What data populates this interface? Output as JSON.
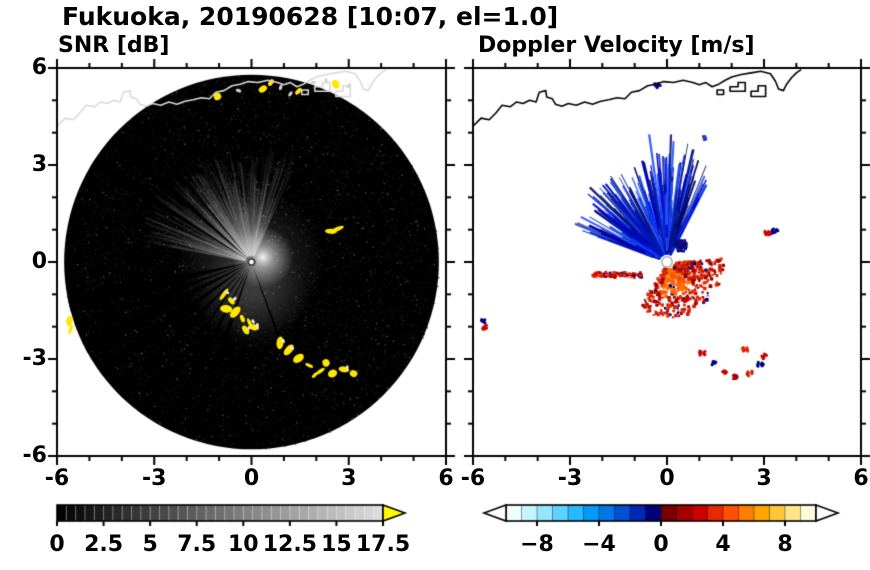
{
  "title": "Fukuoka, 20190628 [10:07, el=1.0]",
  "chart_data": [
    {
      "type": "heatmap",
      "id": "snr",
      "title": "SNR [dB]",
      "xlim": [
        -6,
        6
      ],
      "ylim": [
        -6,
        6
      ],
      "xticks": [
        -6,
        -3,
        0,
        3,
        6
      ],
      "xtick_labels": [
        "-6",
        "-3",
        "0",
        "3",
        "6"
      ],
      "yticks": [
        6,
        3,
        0,
        -3,
        -6
      ],
      "ytick_labels": [
        "6",
        "3",
        "0",
        "-3",
        "-6"
      ],
      "minor_step": 1,
      "grid": false,
      "coastline_color": "#d9d9d9",
      "colorbar": {
        "palette": "grayscale",
        "vmin": 0,
        "vmax": 17.5,
        "segments": 35,
        "tick_values": [
          0,
          2.5,
          5,
          7.5,
          10,
          12.5,
          15,
          17.5
        ],
        "tick_labels": [
          "0",
          "2.5",
          "5",
          "7.5",
          "10",
          "12.5",
          "15",
          "17.5"
        ],
        "over_arrow_color": "#ffff00"
      },
      "scan": {
        "radius": 5.78,
        "background_color": "#000000",
        "noise_points": 5200,
        "haze_fan": {
          "az_min": -80,
          "az_max": 25,
          "r_max": 3.6,
          "count": 430
        },
        "bright_blob": {
          "x": 0.35,
          "y": 0.15,
          "r": 0.95
        },
        "south_haze": {
          "x": 0.05,
          "y": -1.0,
          "r": 1.7
        },
        "dark_spokes": [
          199,
          207,
          216,
          225,
          234,
          243,
          250,
          257,
          302,
          312,
          321,
          160
        ],
        "yellow_color": "#ffe800",
        "clutter_color": "#d0d0d0",
        "yellow_chains": [
          [
            [
              -0.85,
              -1.0
            ],
            [
              -0.62,
              -1.2
            ],
            [
              -0.78,
              -1.45
            ],
            [
              -0.5,
              -1.55
            ],
            [
              -0.28,
              -1.75
            ],
            [
              -0.05,
              -1.9
            ],
            [
              -0.18,
              -2.1
            ],
            [
              0.08,
              -2.02
            ]
          ],
          [
            [
              0.88,
              -2.5
            ],
            [
              1.15,
              -2.72
            ],
            [
              1.45,
              -2.98
            ],
            [
              1.78,
              -3.2
            ],
            [
              2.12,
              -3.38
            ],
            [
              2.5,
              -3.45
            ],
            [
              2.85,
              -3.32
            ],
            [
              3.15,
              -3.45
            ],
            [
              2.3,
              -3.12
            ],
            [
              1.95,
              -3.5
            ]
          ],
          [
            [
              2.45,
              0.95
            ],
            [
              2.65,
              1.02
            ]
          ],
          [
            [
              -5.62,
              -1.82
            ],
            [
              -5.58,
              -2.08
            ]
          ],
          [
            [
              0.35,
              5.35
            ],
            [
              1.45,
              5.28
            ],
            [
              -1.05,
              5.12
            ],
            [
              2.6,
              5.5
            ],
            [
              0.6,
              5.55
            ]
          ]
        ],
        "top_clutter": [
          [
            0.9,
            5.4
          ],
          [
            1.9,
            5.55
          ],
          [
            2.3,
            5.6
          ],
          [
            -0.4,
            5.3
          ],
          [
            3.0,
            5.45
          ],
          [
            1.2,
            5.2
          ]
        ],
        "center_dot": {
          "r": 0.1
        }
      }
    },
    {
      "type": "heatmap",
      "id": "velocity",
      "title": "Doppler Velocity [m/s]",
      "xlim": [
        -6,
        6
      ],
      "ylim": [
        -6,
        6
      ],
      "xticks": [
        -6,
        -3,
        0,
        3,
        6
      ],
      "xtick_labels": [
        "-6",
        "-3",
        "0",
        "3",
        "6"
      ],
      "yticks": [
        6,
        3,
        0,
        -3,
        -6
      ],
      "ytick_labels": [],
      "minor_step": 1,
      "grid": false,
      "coastline_color": "#000000",
      "colorbar": {
        "palette": "diverging",
        "vmin": -10,
        "vmax": 10,
        "colors": [
          "#f0ffff",
          "#c8f4ff",
          "#96e6ff",
          "#5fd3ff",
          "#28b8ff",
          "#009cf5",
          "#0078e8",
          "#0050d8",
          "#0028b4",
          "#000078",
          "#780000",
          "#a40000",
          "#cc0000",
          "#e82800",
          "#ff5000",
          "#ff7d00",
          "#ffa500",
          "#ffc83c",
          "#ffe68c",
          "#fffadc"
        ],
        "tick_values": [
          -8,
          -4,
          0,
          4,
          8
        ],
        "tick_labels": [
          "−8",
          "−4",
          "0",
          "4",
          "8"
        ],
        "under_arrow_color": "#ffffff",
        "over_arrow_color": "#ffffff"
      },
      "features": {
        "blue_fan": {
          "az": [
            -70,
            28
          ],
          "count": 430,
          "r0": [
            0.22,
            0.5
          ],
          "len_pow": 2.0,
          "len_max": 2.6,
          "long_az": [
            -12,
            18
          ],
          "colors": [
            "#0000cd",
            "#0020b0",
            "#0038e8",
            "#001078",
            "#2a50ff",
            "#000860"
          ]
        },
        "ne_blob": {
          "x": 0.4,
          "y": 0.55,
          "spread": 0.22,
          "count": 80,
          "colors": [
            "#000080",
            "#0000b4",
            "#141464"
          ]
        },
        "red_fan": {
          "az": [
            85,
            215
          ],
          "count": 560,
          "r_max": 1.5,
          "orange": [
            "#ff6400",
            "#ff7d00",
            "#ff5000"
          ],
          "red": [
            "#e03000",
            "#c81400",
            "#a00000"
          ],
          "navy_frac": 0.06
        },
        "west_streak": {
          "x": [
            -2.35,
            -0.8
          ],
          "y_c": -0.36,
          "y_sd": 0.1,
          "count": 120,
          "colors": [
            "#d81800",
            "#b40000",
            "#ff3c00"
          ],
          "navy_frac": 0.18
        },
        "patches": [
          [
            3.08,
            0.92,
            "#cc0000"
          ],
          [
            3.2,
            0.9,
            "#cc0000"
          ],
          [
            3.33,
            0.95,
            "#000080"
          ],
          [
            -5.66,
            -1.85,
            "#000080"
          ],
          [
            -5.64,
            -2.03,
            "#cc0000"
          ],
          [
            1.1,
            -2.82,
            "#cc0000"
          ],
          [
            1.42,
            -3.15,
            "#000080"
          ],
          [
            1.75,
            -3.42,
            "#cc0000"
          ],
          [
            2.15,
            -3.55,
            "#a00000"
          ],
          [
            2.55,
            -3.45,
            "#cc2000"
          ],
          [
            2.88,
            -3.18,
            "#000080"
          ],
          [
            3.02,
            -2.92,
            "#cc0000"
          ],
          [
            2.42,
            -2.68,
            "#dd2200"
          ],
          [
            -0.3,
            5.45,
            "#000080"
          ],
          [
            1.15,
            3.85,
            "#2040c0"
          ]
        ],
        "center_hole": {
          "r": 0.16
        }
      }
    }
  ],
  "coastline": {
    "line": [
      [
        -6.0,
        4.2
      ],
      [
        -5.75,
        4.45
      ],
      [
        -5.5,
        4.4
      ],
      [
        -5.3,
        4.6
      ],
      [
        -5.1,
        4.85
      ],
      [
        -4.85,
        4.8
      ],
      [
        -4.65,
        4.95
      ],
      [
        -4.45,
        4.9
      ],
      [
        -4.25,
        5.0
      ],
      [
        -4.05,
        4.95
      ],
      [
        -3.95,
        5.25
      ],
      [
        -3.75,
        5.3
      ],
      [
        -3.72,
        5.1
      ],
      [
        -3.55,
        5.05
      ],
      [
        -3.45,
        4.88
      ],
      [
        -3.25,
        4.82
      ],
      [
        -3.05,
        4.9
      ],
      [
        -2.8,
        4.85
      ],
      [
        -2.55,
        4.95
      ],
      [
        -2.3,
        4.88
      ],
      [
        -2.05,
        4.97
      ],
      [
        -1.8,
        5.02
      ],
      [
        -1.55,
        5.08
      ],
      [
        -1.3,
        5.05
      ],
      [
        -1.1,
        5.25
      ],
      [
        -0.85,
        5.3
      ],
      [
        -0.6,
        5.45
      ],
      [
        -0.35,
        5.5
      ],
      [
        -0.1,
        5.58
      ],
      [
        0.2,
        5.55
      ],
      [
        0.5,
        5.62
      ],
      [
        0.8,
        5.55
      ],
      [
        1.0,
        5.48
      ],
      [
        1.2,
        5.55
      ],
      [
        1.4,
        5.42
      ],
      [
        1.6,
        5.5
      ],
      [
        1.8,
        5.62
      ],
      [
        2.0,
        5.72
      ],
      [
        2.3,
        5.8
      ],
      [
        2.6,
        5.85
      ],
      [
        2.9,
        5.9
      ],
      [
        3.2,
        5.82
      ],
      [
        3.35,
        5.6
      ],
      [
        3.45,
        5.35
      ],
      [
        3.6,
        5.3
      ],
      [
        3.7,
        5.5
      ],
      [
        3.85,
        5.7
      ],
      [
        4.0,
        5.85
      ],
      [
        4.15,
        5.95
      ]
    ],
    "islands": [
      [
        [
          1.95,
          5.28
        ],
        [
          2.42,
          5.28
        ],
        [
          2.42,
          5.55
        ],
        [
          2.2,
          5.55
        ],
        [
          2.2,
          5.42
        ],
        [
          1.95,
          5.42
        ]
      ],
      [
        [
          2.6,
          5.12
        ],
        [
          3.05,
          5.12
        ],
        [
          3.05,
          5.45
        ],
        [
          2.82,
          5.45
        ],
        [
          2.82,
          5.28
        ],
        [
          2.6,
          5.28
        ]
      ],
      [
        [
          1.55,
          5.18
        ],
        [
          1.75,
          5.18
        ],
        [
          1.75,
          5.32
        ],
        [
          1.55,
          5.32
        ]
      ]
    ]
  }
}
